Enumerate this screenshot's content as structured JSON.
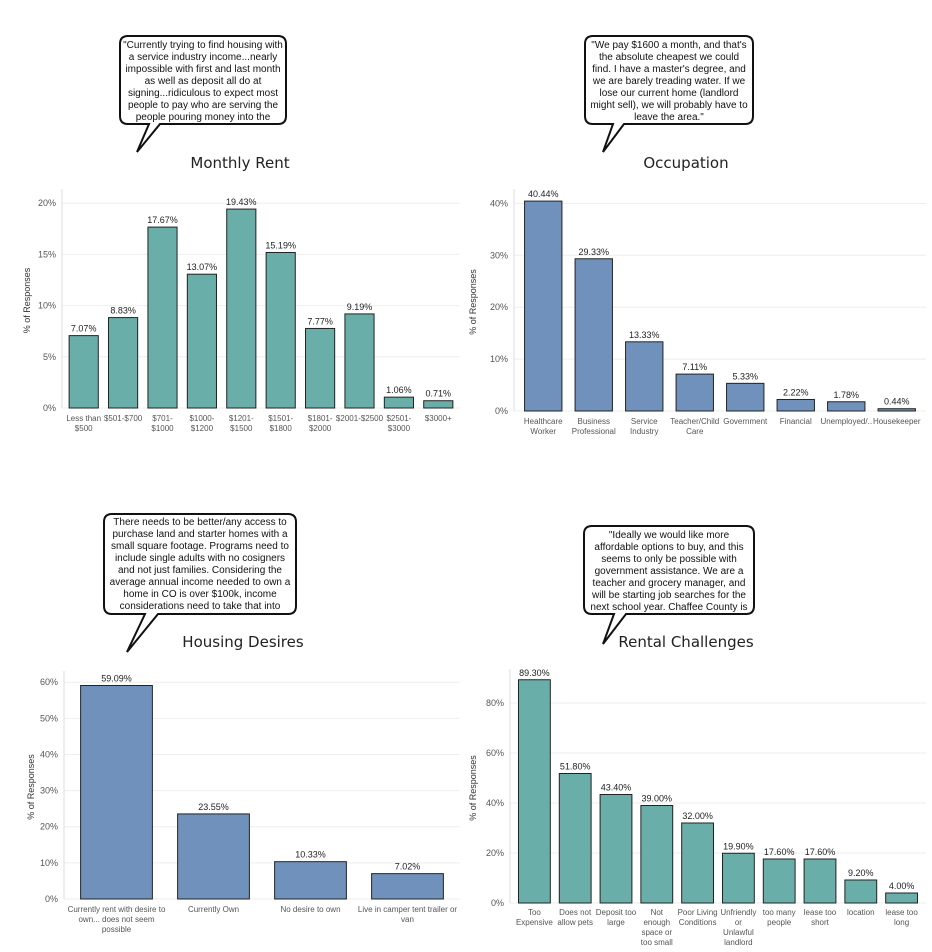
{
  "quotes": [
    "\"Currently trying to find housing with a service industry income...nearly impossible with first and last month as well as deposit all do at signing...ridiculous to expect most people to pay who are serving the people pouring money into the economy\"",
    "\"We pay $1600 a month, and that's the absolute cheapest we could find. I have a master's degree, and we are barely treading water. If we lose our current home (landlord might sell), we will probably have to leave the area.\"",
    "There needs to be better/any access to purchase land and starter homes with a small square footage. Programs need to include single adults with no cosigners and not just families. Considering the average annual income needed to own a home in CO is over $100k, income considerations need to take that into account. Too poor to pay rent or qualify for a mortgage but too much income to qualify for programs is a",
    "\"Ideally we would like more affordable options to buy, and this seems to only be possible with government assistance. We are a teacher and grocery manager, and will be starting job searches for the next school year. Chaffee County is not sustainable for our family of essential workers.\""
  ],
  "colors": {
    "teal": "#6aaea9",
    "blue": "#7091bb",
    "grid": "#eeeeee",
    "axis": "#555555"
  },
  "chart_data": [
    {
      "type": "bar",
      "title": "Monthly Rent",
      "ylabel": "% of Responses",
      "ylim": [
        0,
        21
      ],
      "yticks": [
        0,
        5,
        10,
        15,
        20
      ],
      "ytick_labels": [
        "0%",
        "5%",
        "10%",
        "15%",
        "20%"
      ],
      "categories": [
        [
          "Less than",
          "$500"
        ],
        [
          "$501-$700"
        ],
        [
          "$701-",
          "$1000"
        ],
        [
          "$1000-",
          "$1200"
        ],
        [
          "$1201-",
          "$1500"
        ],
        [
          "$1501-",
          "$1800"
        ],
        [
          "$1801-",
          "$2000"
        ],
        [
          "$2001-$2500"
        ],
        [
          "$2501-",
          "$3000"
        ],
        [
          "$3000+"
        ]
      ],
      "values": [
        7.07,
        8.83,
        17.67,
        13.07,
        19.43,
        15.19,
        7.77,
        9.19,
        1.06,
        0.71
      ],
      "value_labels": [
        "7.07%",
        "8.83%",
        "17.67%",
        "13.07%",
        "19.43%",
        "15.19%",
        "7.77%",
        "9.19%",
        "1.06%",
        "0.71%"
      ],
      "color": "#6aaea9"
    },
    {
      "type": "bar",
      "title": "Occupation",
      "ylabel": "% of Responses",
      "ylim": [
        0,
        42
      ],
      "yticks": [
        0,
        10,
        20,
        30,
        40
      ],
      "ytick_labels": [
        "0%",
        "10%",
        "20%",
        "30%",
        "40%"
      ],
      "categories": [
        [
          "Healthcare",
          "Worker"
        ],
        [
          "Business",
          "Professional"
        ],
        [
          "Service",
          "Industry"
        ],
        [
          "Teacher/Child",
          "Care"
        ],
        [
          "Government"
        ],
        [
          "Financial"
        ],
        [
          "Unemployed/.."
        ],
        [
          "Housekeeper"
        ]
      ],
      "values": [
        40.44,
        29.33,
        13.33,
        7.11,
        5.33,
        2.22,
        1.78,
        0.44
      ],
      "value_labels": [
        "40.44%",
        "29.33%",
        "13.33%",
        "7.11%",
        "5.33%",
        "2.22%",
        "1.78%",
        "0.44%"
      ],
      "color": "#7091bb"
    },
    {
      "type": "bar",
      "title": "Housing Desires",
      "ylabel": "% of Responses",
      "ylim": [
        0,
        62
      ],
      "yticks": [
        0,
        10,
        20,
        30,
        40,
        50,
        60
      ],
      "ytick_labels": [
        "0%",
        "10%",
        "20%",
        "30%",
        "40%",
        "50%",
        "60%"
      ],
      "categories": [
        [
          "Currently rent with desire to",
          "own... does not seem",
          "possible"
        ],
        [
          "Currently Own"
        ],
        [
          "No desire to own"
        ],
        [
          "Live in camper tent trailer or",
          "van"
        ]
      ],
      "values": [
        59.09,
        23.55,
        10.33,
        7.02
      ],
      "value_labels": [
        "59.09%",
        "23.55%",
        "10.33%",
        "7.02%"
      ],
      "color": "#7091bb"
    },
    {
      "type": "bar",
      "title": "Rental Challenges",
      "ylabel": "% of Responses",
      "ylim": [
        0,
        92
      ],
      "yticks": [
        0,
        20,
        40,
        60,
        80
      ],
      "ytick_labels": [
        "0%",
        "20%",
        "40%",
        "60%",
        "80%"
      ],
      "categories": [
        [
          "Too",
          "Expensive"
        ],
        [
          "Does not",
          "allow pets"
        ],
        [
          "Deposit too",
          "large"
        ],
        [
          "Not",
          "enough",
          "space or",
          "too small"
        ],
        [
          "Poor Living",
          "Conditions"
        ],
        [
          "Unfriendly",
          "or",
          "Unlawful",
          "landlord"
        ],
        [
          "too many",
          "people"
        ],
        [
          "lease too",
          "short"
        ],
        [
          "location"
        ],
        [
          "lease too",
          "long"
        ]
      ],
      "values": [
        89.3,
        51.8,
        43.4,
        39.0,
        32.0,
        19.9,
        17.6,
        17.6,
        9.2,
        4.0
      ],
      "value_labels": [
        "89.30%",
        "51.80%",
        "43.40%",
        "39.00%",
        "32.00%",
        "19.90%",
        "17.60%",
        "17.60%",
        "9.20%",
        "4.00%"
      ],
      "color": "#6aaea9"
    }
  ]
}
